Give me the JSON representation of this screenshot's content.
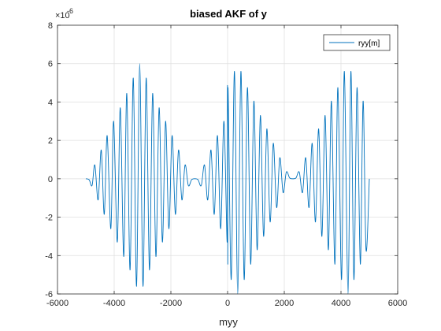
{
  "chart_data": {
    "type": "line",
    "title": "biased AKF of y",
    "xlabel": "myy",
    "ylabel": "",
    "exponent_label": "×10",
    "exponent_value": "-6",
    "xlim": [
      -6000,
      6000
    ],
    "ylim": [
      -6,
      8
    ],
    "y_scale": 1e-06,
    "xticks": [
      "-6000",
      "-4000",
      "-2000",
      "0",
      "2000",
      "4000",
      "6000"
    ],
    "yticks": [
      "-6",
      "-4",
      "-2",
      "0",
      "2",
      "4",
      "6",
      "8"
    ],
    "grid": true,
    "legend_position": "top-right",
    "series": [
      {
        "name": "ryy[m]",
        "color": "#0072BD",
        "x": [
          -5000,
          -4883,
          -4780,
          -4682,
          -4566,
          -4456,
          -4350,
          -4248,
          -4118,
          -4020,
          -3890,
          -3785,
          -3662,
          -3556,
          -3440,
          -3327,
          -3212,
          -3100,
          -2984,
          -2872,
          -2756,
          -2643,
          -2528,
          -2415,
          -2300,
          -2187,
          -2072,
          -1958,
          -1842,
          -1730,
          -1612,
          -1500,
          -1385,
          -1270,
          -1157,
          -1042,
          -928,
          -814,
          -700,
          -585,
          -470,
          -357,
          -242,
          -128,
          -15,
          -7,
          0,
          7,
          15,
          128,
          242,
          357,
          470,
          585,
          700,
          814,
          928,
          1042,
          1157,
          1270,
          1385,
          1500,
          1612,
          1730,
          1842,
          1958,
          2072,
          2187,
          2300,
          2415,
          2528,
          2643,
          2756,
          2872,
          2984,
          3100,
          3212,
          3327,
          3440,
          3556,
          3662,
          3785,
          3890,
          4020,
          4118,
          4248,
          4350,
          4456,
          4566,
          4682,
          4780,
          4883,
          5000
        ],
        "y": [
          0.0,
          -0.05,
          -0.35,
          0.72,
          -1.1,
          1.5,
          -1.85,
          2.25,
          -2.6,
          3.0,
          -3.3,
          3.7,
          -4.05,
          4.45,
          -4.75,
          5.25,
          -5.6,
          6.0,
          -5.6,
          5.25,
          -4.75,
          4.45,
          -4.05,
          3.7,
          -3.3,
          3.0,
          -2.6,
          2.25,
          -1.85,
          1.5,
          -1.1,
          0.72,
          -0.35,
          -0.05,
          0.0,
          -0.05,
          -0.35,
          0.72,
          -1.1,
          1.5,
          -1.85,
          2.25,
          -2.6,
          3.0,
          -3.3,
          3.7,
          4.05,
          -4.45,
          4.75,
          -5.25,
          5.6,
          -6.0,
          5.6,
          -5.25,
          4.75,
          -4.45,
          4.05,
          -3.7,
          3.3,
          -3.0,
          2.6,
          -2.25,
          1.85,
          -1.5,
          1.1,
          -0.72,
          0.35,
          0.05,
          0.0,
          0.05,
          0.35,
          -0.72,
          1.1,
          -1.5,
          1.85,
          -2.25,
          2.6,
          -3.0,
          3.3,
          -3.7,
          4.05,
          -4.45,
          4.75,
          -5.25,
          5.6,
          -6.0,
          5.6,
          -5.25,
          4.75,
          -4.45,
          4.05,
          -3.7,
          0.0
        ]
      }
    ]
  }
}
